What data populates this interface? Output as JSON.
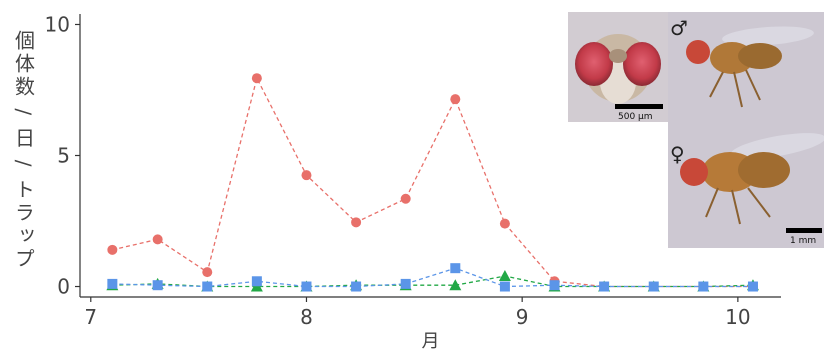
{
  "chart_data": {
    "type": "line",
    "xlabel": "月",
    "ylabel": "個体数 / 日 / トラップ",
    "xlim": [
      6.95,
      10.2
    ],
    "ylim": [
      -0.4,
      10.4
    ],
    "xticks": [
      7,
      8,
      9,
      10
    ],
    "xtick_labels": [
      "7",
      "8",
      "9",
      "10"
    ],
    "yticks": [
      0,
      5,
      10
    ],
    "ytick_labels": [
      "0",
      "5",
      "10"
    ],
    "grid": false,
    "legend": null,
    "series": [
      {
        "color": "#e8706a",
        "marker": "circle",
        "x": [
          7.1,
          7.31,
          7.54,
          7.77,
          8.0,
          8.23,
          8.46,
          8.69,
          8.92,
          9.15,
          9.38,
          9.61,
          9.84,
          10.07
        ],
        "y": [
          1.4,
          1.8,
          0.55,
          7.95,
          4.25,
          2.45,
          3.35,
          7.15,
          2.4,
          0.2,
          0.0,
          0.0,
          0.0,
          0.0
        ]
      },
      {
        "color": "#22a846",
        "marker": "triangle",
        "x": [
          7.1,
          7.31,
          7.54,
          7.77,
          8.0,
          8.23,
          8.46,
          8.69,
          8.92,
          9.15,
          9.38,
          9.61,
          9.84,
          10.07
        ],
        "y": [
          0.05,
          0.1,
          0.0,
          0.0,
          0.0,
          0.05,
          0.05,
          0.05,
          0.4,
          0.0,
          0.0,
          0.0,
          0.0,
          0.05
        ]
      },
      {
        "color": "#5b95e8",
        "marker": "square",
        "x": [
          7.1,
          7.31,
          7.54,
          7.77,
          8.0,
          8.23,
          8.46,
          8.69,
          8.92,
          9.15,
          9.38,
          9.61,
          9.84,
          10.07
        ],
        "y": [
          0.1,
          0.05,
          0.0,
          0.2,
          0.0,
          0.0,
          0.1,
          0.7,
          0.0,
          0.05,
          0.0,
          0.0,
          0.0,
          0.0
        ]
      }
    ]
  },
  "photos": {
    "head_scale_label": "500 µm",
    "body_scale_label": "1 mm",
    "male_symbol": "♂",
    "female_symbol": "♀"
  }
}
